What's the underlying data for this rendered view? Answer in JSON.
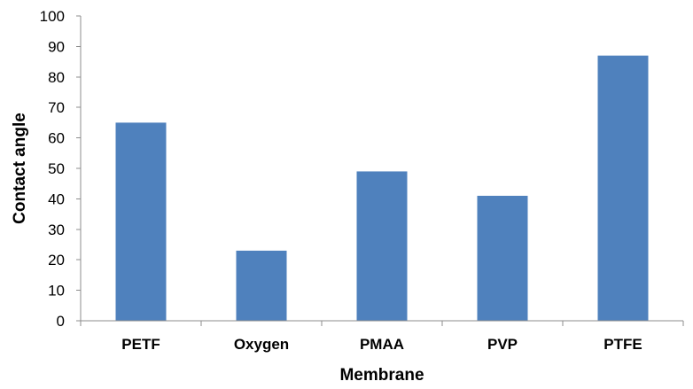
{
  "chart_data": {
    "type": "bar",
    "categories": [
      "PETF",
      "Oxygen",
      "PMAA",
      "PVP",
      "PTFE"
    ],
    "values": [
      65,
      23,
      49,
      41,
      87
    ],
    "xlabel": "Membrane",
    "ylabel": "Contact angle",
    "ylim": [
      0,
      100
    ],
    "yticks": [
      0,
      10,
      20,
      30,
      40,
      50,
      60,
      70,
      80,
      90,
      100
    ],
    "grid": false,
    "legend": "none",
    "bar_color": "#4f81bd"
  }
}
